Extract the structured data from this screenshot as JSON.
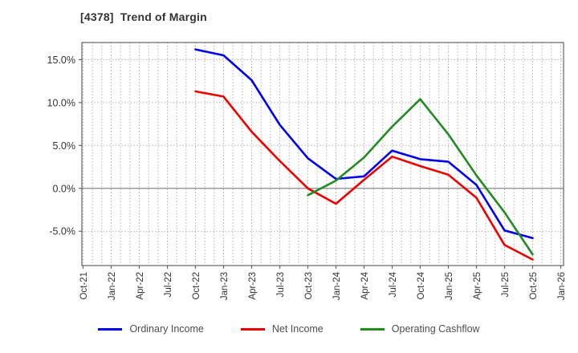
{
  "title": "[4378]  Trend of Margin",
  "legend": {
    "items": [
      {
        "label": "Ordinary Income",
        "color": "#0000ee"
      },
      {
        "label": "Net Income",
        "color": "#ee0000"
      },
      {
        "label": "Operating Cashflow",
        "color": "#228b22"
      }
    ]
  },
  "chart_data": {
    "type": "line",
    "title": "[4378]  Trend of Margin",
    "x_tick_labels": [
      "Oct-21",
      "Jan-22",
      "Apr-22",
      "Jul-22",
      "Oct-22",
      "Jan-23",
      "Apr-23",
      "Jul-23",
      "Oct-23",
      "Jan-24",
      "Apr-24",
      "Jul-24",
      "Oct-24",
      "Jan-25",
      "Apr-25",
      "Jul-25",
      "Oct-25",
      "Jan-26"
    ],
    "x_months_total": 51,
    "x_tick_step_months": 3,
    "y_ticks": [
      15,
      10,
      5,
      0,
      -5
    ],
    "y_tick_labels": [
      "15.0%",
      "10.0%",
      "5.0%",
      "0.0%",
      "-5.0%"
    ],
    "ylim": [
      -9,
      17
    ],
    "grid": "dotted monthly vertical + dotted horizontal at 5% steps, solid zero line",
    "legend_position": "bottom-center",
    "series": [
      {
        "name": "Ordinary Income",
        "color": "#0000ee",
        "start_month_index": 12,
        "step_months": 3,
        "x_labels": [
          "Oct-22",
          "Jan-23",
          "Apr-23",
          "Jul-23",
          "Oct-23",
          "Jan-24",
          "Apr-24",
          "Jul-24",
          "Oct-24",
          "Jan-25",
          "Apr-25",
          "Jul-25",
          "Oct-25"
        ],
        "values": [
          16.2,
          15.5,
          12.6,
          7.4,
          3.5,
          1.1,
          1.4,
          4.4,
          3.4,
          3.1,
          0.4,
          -4.9,
          -5.8
        ]
      },
      {
        "name": "Net Income",
        "color": "#ee0000",
        "start_month_index": 12,
        "step_months": 3,
        "x_labels": [
          "Oct-22",
          "Jan-23",
          "Apr-23",
          "Jul-23",
          "Oct-23",
          "Jan-24",
          "Apr-24",
          "Jul-24",
          "Oct-24",
          "Jan-25",
          "Apr-25",
          "Jul-25",
          "Oct-25"
        ],
        "values": [
          11.3,
          10.7,
          6.6,
          3.2,
          0.0,
          -1.8,
          1.0,
          3.7,
          2.6,
          1.6,
          -1.1,
          -6.6,
          -8.3
        ]
      },
      {
        "name": "Operating Cashflow",
        "color": "#228b22",
        "start_month_index": 24,
        "step_months": 3,
        "x_labels": [
          "Oct-23",
          "Jan-24",
          "Apr-24",
          "Jul-24",
          "Oct-24",
          "Jan-25",
          "Apr-25",
          "Jul-25",
          "Oct-25"
        ],
        "values": [
          -0.8,
          0.9,
          3.6,
          7.2,
          10.4,
          6.3,
          1.5,
          -2.8,
          -7.7
        ]
      }
    ]
  }
}
